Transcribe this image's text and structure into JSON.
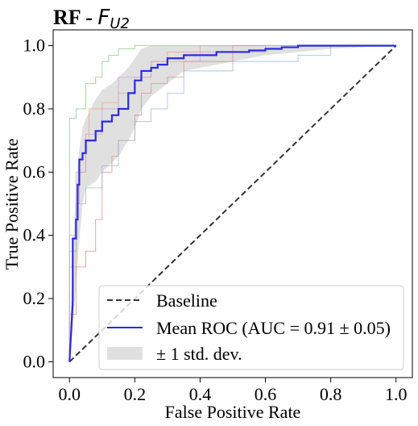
{
  "chart_data": {
    "type": "line",
    "title": {
      "bold_part": "RF - ",
      "italic_symbol": "F",
      "subscript": "U2"
    },
    "xlabel": "False Positive Rate",
    "ylabel": "True Positive Rate",
    "xlim": [
      -0.05,
      1.05
    ],
    "ylim": [
      -0.05,
      1.05
    ],
    "xticks": [
      0.0,
      0.2,
      0.4,
      0.6,
      0.8,
      1.0
    ],
    "yticks": [
      0.0,
      0.2,
      0.4,
      0.6,
      0.8,
      1.0
    ],
    "xtick_labels": [
      "0.0",
      "0.2",
      "0.4",
      "0.6",
      "0.8",
      "1.0"
    ],
    "ytick_labels": [
      "0.0",
      "0.2",
      "0.4",
      "0.6",
      "0.8",
      "1.0"
    ],
    "grid": false,
    "legend": {
      "position": "lower-right",
      "entries": [
        {
          "label": "Baseline",
          "style": "dashed",
          "color": "#333333"
        },
        {
          "label": "Mean ROC (AUC = 0.91 ± 0.05)",
          "style": "solid",
          "color": "#2a2ae0"
        },
        {
          "label": "± 1 std. dev.",
          "style": "band",
          "color": "#e0e0e0"
        }
      ]
    },
    "baseline": {
      "x": [
        0,
        1
      ],
      "y": [
        0,
        1
      ],
      "color": "#333333"
    },
    "band_color": "#e0e0e0",
    "mean_color": "#2a2ae0",
    "mean_roc": {
      "x": [
        0,
        0.01,
        0.01,
        0.02,
        0.02,
        0.025,
        0.025,
        0.03,
        0.03,
        0.04,
        0.04,
        0.05,
        0.05,
        0.08,
        0.08,
        0.1,
        0.1,
        0.13,
        0.13,
        0.15,
        0.15,
        0.18,
        0.18,
        0.2,
        0.2,
        0.22,
        0.22,
        0.25,
        0.25,
        0.27,
        0.27,
        0.3,
        0.3,
        0.35,
        0.35,
        0.45,
        0.45,
        0.55,
        0.55,
        0.6,
        0.6,
        0.65,
        0.65,
        0.7,
        0.7,
        0.75,
        0.75,
        0.8,
        1.0
      ],
      "y": [
        0,
        0.19,
        0.39,
        0.39,
        0.45,
        0.45,
        0.56,
        0.56,
        0.64,
        0.64,
        0.66,
        0.66,
        0.7,
        0.7,
        0.73,
        0.73,
        0.76,
        0.76,
        0.78,
        0.78,
        0.8,
        0.8,
        0.85,
        0.85,
        0.89,
        0.89,
        0.92,
        0.92,
        0.93,
        0.93,
        0.94,
        0.94,
        0.96,
        0.96,
        0.97,
        0.97,
        0.98,
        0.98,
        0.985,
        0.985,
        0.99,
        0.99,
        0.995,
        0.995,
        1.0,
        1.0,
        1.0,
        1.0,
        1.0
      ]
    },
    "std_band": {
      "x": [
        0,
        0.01,
        0.02,
        0.03,
        0.04,
        0.05,
        0.08,
        0.1,
        0.13,
        0.15,
        0.18,
        0.2,
        0.22,
        0.25,
        0.3,
        0.35,
        0.45,
        0.55,
        0.6,
        0.7,
        0.8,
        1.0
      ],
      "upper": [
        0,
        0.35,
        0.55,
        0.67,
        0.74,
        0.77,
        0.83,
        0.86,
        0.88,
        0.9,
        0.93,
        0.96,
        0.99,
        1.0,
        1.0,
        1.0,
        1.0,
        1.0,
        1.0,
        1.0,
        1.0,
        1.0
      ],
      "lower": [
        0,
        0.1,
        0.25,
        0.38,
        0.5,
        0.55,
        0.57,
        0.6,
        0.63,
        0.65,
        0.7,
        0.74,
        0.8,
        0.84,
        0.88,
        0.92,
        0.94,
        0.96,
        0.97,
        0.98,
        0.99,
        1.0
      ]
    },
    "folds": [
      {
        "color": "#7fbf7f",
        "x": [
          0,
          0,
          0.02,
          0.02,
          0.05,
          0.05,
          0.08,
          0.08,
          0.1,
          0.1,
          0.12,
          0.12,
          0.15,
          0.15,
          0.2,
          0.2,
          0.22,
          0.22,
          0.35,
          0.35,
          1.0
        ],
        "y": [
          0,
          0.77,
          0.77,
          0.8,
          0.8,
          0.88,
          0.88,
          0.9,
          0.9,
          0.95,
          0.95,
          0.97,
          0.97,
          0.99,
          0.99,
          1.0,
          1.0,
          1.0,
          1.0,
          1.0,
          1.0
        ]
      },
      {
        "color": "#f0a070",
        "x": [
          0,
          0,
          0.02,
          0.02,
          0.03,
          0.03,
          0.05,
          0.05,
          0.06,
          0.06,
          0.1,
          0.1,
          0.15,
          0.15,
          0.2,
          0.2,
          0.25,
          0.25,
          0.3,
          0.3,
          0.4,
          0.4,
          1.0
        ],
        "y": [
          0,
          0.3,
          0.3,
          0.5,
          0.5,
          0.6,
          0.6,
          0.7,
          0.7,
          0.8,
          0.8,
          0.82,
          0.82,
          0.85,
          0.85,
          0.9,
          0.9,
          0.95,
          0.95,
          0.98,
          0.98,
          1.0,
          1.0
        ]
      },
      {
        "color": "#e08080",
        "x": [
          0,
          0,
          0.02,
          0.02,
          0.05,
          0.05,
          0.08,
          0.08,
          0.1,
          0.1,
          0.13,
          0.13,
          0.15,
          0.15,
          0.2,
          0.2,
          0.22,
          0.22,
          0.25,
          0.25,
          0.3,
          0.3,
          0.35,
          0.35,
          0.5,
          0.5,
          1.0
        ],
        "y": [
          0,
          0.15,
          0.15,
          0.3,
          0.3,
          0.35,
          0.35,
          0.45,
          0.45,
          0.6,
          0.6,
          0.65,
          0.65,
          0.7,
          0.7,
          0.78,
          0.78,
          0.85,
          0.85,
          0.88,
          0.88,
          0.9,
          0.9,
          0.95,
          0.95,
          1.0,
          1.0
        ]
      },
      {
        "color": "#90b0d0",
        "x": [
          0,
          0,
          0.02,
          0.02,
          0.05,
          0.05,
          0.1,
          0.1,
          0.15,
          0.15,
          0.2,
          0.2,
          0.25,
          0.25,
          0.3,
          0.3,
          0.35,
          0.35,
          0.5,
          0.5,
          0.7,
          0.7,
          0.8,
          0.8,
          1.0
        ],
        "y": [
          0,
          0.35,
          0.35,
          0.5,
          0.5,
          0.55,
          0.55,
          0.62,
          0.62,
          0.7,
          0.7,
          0.76,
          0.76,
          0.8,
          0.8,
          0.85,
          0.85,
          0.92,
          0.92,
          0.95,
          0.95,
          0.97,
          0.97,
          1.0,
          1.0
        ]
      },
      {
        "color": "#c8a0d8",
        "x": [
          0,
          0,
          0.02,
          0.02,
          0.05,
          0.05,
          0.1,
          0.1,
          0.15,
          0.15,
          0.25,
          0.25,
          0.4,
          0.4,
          0.6,
          0.6,
          1.0
        ],
        "y": [
          0,
          0.4,
          0.4,
          0.6,
          0.6,
          0.72,
          0.72,
          0.8,
          0.8,
          0.9,
          0.9,
          0.95,
          0.95,
          0.98,
          0.98,
          1.0,
          1.0
        ]
      }
    ]
  }
}
